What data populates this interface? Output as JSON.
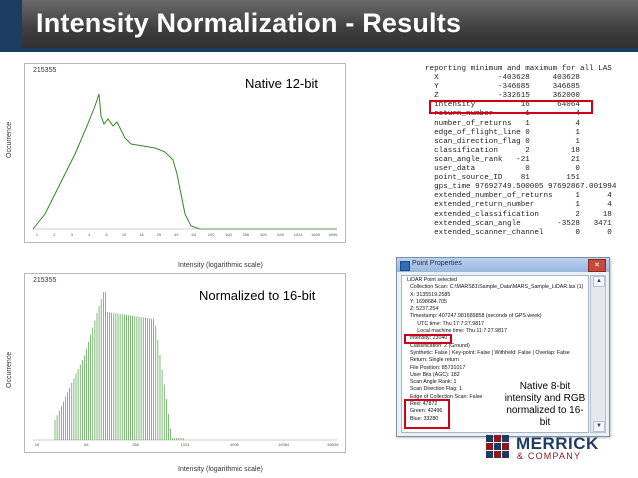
{
  "header": {
    "title": "Intensity Normalization - Results"
  },
  "chart_data": [
    {
      "type": "line",
      "max_label": "215355",
      "annotation": "Native 12-bit",
      "ylabel": "Occurrence",
      "xlabel": "Intensity (logarithmic scale)",
      "x_ticks": [
        "1",
        "2",
        "3",
        "4",
        "6",
        "10",
        "16",
        "25",
        "40",
        "64",
        "100",
        "160",
        "256",
        "400",
        "640",
        "1024",
        "1600",
        "4096"
      ]
    },
    {
      "type": "bar",
      "max_label": "215355",
      "annotation": "Normalized to 16-bit",
      "ylabel": "Occurrence",
      "xlabel": "Intensity (logarithmic scale)",
      "x_ticks": [
        "16",
        "64",
        "256",
        "1024",
        "4096",
        "16384",
        "65536"
      ]
    }
  ],
  "las_report": {
    "lines": [
      "reporting minimum and maximum for all LAS",
      "  X             -403628     403628",
      "  Y             -346685     346685",
      "  Z             -332615     362000",
      "  intensity          16      64064",
      "  return_number       1          4",
      "  number_of_returns   1          4",
      "  edge_of_flight_line 0          1",
      "  scan_direction_flag 0          1",
      "  classification      2         18",
      "  scan_angle_rank   -21         21",
      "  user_data           0          0",
      "  point_source_ID    81        151",
      "  gps_time 97692749.500005 97692867.001994",
      "  extended_number_of_returns     1      4",
      "  extended_return_number         1      4",
      "  extended_classification        2     18",
      "  extended_scan_angle        -3528   3471",
      "  extended_scanner_channel       0      0"
    ]
  },
  "dialog": {
    "title": "Point Properties",
    "close_label": "✕",
    "lines": [
      "LiDAR Point selected",
      "  Collection Scan: C:\\MARS81\\Sample_Data\\MARS_Sample_LiDAR.las (1)",
      "  X: 3135519.2585",
      "  Y: 1698684.705",
      "  Z: 5237.254",
      "  Timestamp: 407247.981689858 (seconds of GPS week)",
      "       UTC time: Thu 17:7:27.9817",
      "       Local machine time: Thu 11:7:27.9817",
      "  Intensity: 23040",
      "  Classification: 2 (Ground)",
      "  Synthetic: False | Key-point: False | Withheld: False | Overlap: False",
      "  Return: Single return",
      "  File Position: 85731017",
      "  User Bits (AGC): 182",
      "  Scan Angle Rank: 1",
      "  Scan Direction Flag: 1",
      "  Edge of Collection Scan: False",
      "  Red: 47872",
      "  Green: 42496",
      "  Blue: 33280"
    ],
    "note": "Native 8-bit intensity and RGB normalized to 16-bit"
  },
  "logo": {
    "name": "MERRICK",
    "sub": "& COMPANY"
  },
  "colors": {
    "accent_red": "#d0001a",
    "header_blue": "#1d3c63",
    "chart_green": "#2e8b22"
  }
}
